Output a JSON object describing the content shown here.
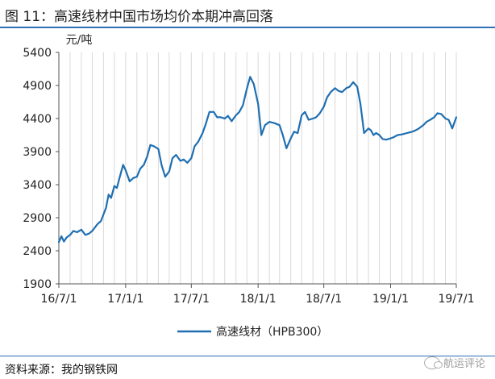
{
  "figure": {
    "title": "图 11：高速线材中国市场均价本期冲高回落",
    "source": "资料来源：我的钢铁网",
    "watermark": "航运评论",
    "watermark_icon": "wechat-icon"
  },
  "chart_data": {
    "type": "line",
    "title": "",
    "ylabel": "元/吨",
    "xlabel": "",
    "ylim": [
      1900,
      5400
    ],
    "yticks": [
      1900,
      2400,
      2900,
      3400,
      3900,
      4400,
      4900,
      5400
    ],
    "xlim": [
      "2016-07-01",
      "2019-07-01"
    ],
    "xtick_labels": [
      "16/7/1",
      "17/1/1",
      "17/7/1",
      "18/1/1",
      "18/7/1",
      "19/1/1",
      "19/7/1"
    ],
    "xtick_dates": [
      "2016-07-01",
      "2017-01-01",
      "2017-07-01",
      "2018-01-01",
      "2018-07-01",
      "2019-01-01",
      "2019-07-01"
    ],
    "grid": "vertical",
    "legend": "bottom-center",
    "series": [
      {
        "name": "高速线材（HPB300）",
        "color": "#1f6fb2",
        "x": [
          "2016-07-01",
          "2016-07-08",
          "2016-07-15",
          "2016-07-22",
          "2016-08-01",
          "2016-08-10",
          "2016-08-20",
          "2016-09-01",
          "2016-09-12",
          "2016-09-22",
          "2016-10-01",
          "2016-10-15",
          "2016-10-25",
          "2016-11-01",
          "2016-11-08",
          "2016-11-15",
          "2016-11-22",
          "2016-12-01",
          "2016-12-08",
          "2016-12-15",
          "2016-12-25",
          "2017-01-01",
          "2017-01-12",
          "2017-01-22",
          "2017-02-01",
          "2017-02-10",
          "2017-02-20",
          "2017-03-01",
          "2017-03-10",
          "2017-03-20",
          "2017-04-01",
          "2017-04-10",
          "2017-04-20",
          "2017-05-01",
          "2017-05-10",
          "2017-05-20",
          "2017-06-01",
          "2017-06-10",
          "2017-06-20",
          "2017-07-01",
          "2017-07-10",
          "2017-07-20",
          "2017-08-01",
          "2017-08-10",
          "2017-08-20",
          "2017-09-01",
          "2017-09-10",
          "2017-09-20",
          "2017-10-01",
          "2017-10-10",
          "2017-10-20",
          "2017-11-01",
          "2017-11-10",
          "2017-11-20",
          "2017-12-01",
          "2017-12-10",
          "2017-12-20",
          "2018-01-01",
          "2018-01-10",
          "2018-01-20",
          "2018-02-01",
          "2018-02-15",
          "2018-03-01",
          "2018-03-10",
          "2018-03-20",
          "2018-04-01",
          "2018-04-10",
          "2018-04-20",
          "2018-05-01",
          "2018-05-10",
          "2018-05-20",
          "2018-06-01",
          "2018-06-10",
          "2018-06-20",
          "2018-07-01",
          "2018-07-10",
          "2018-07-20",
          "2018-08-01",
          "2018-08-10",
          "2018-08-20",
          "2018-09-01",
          "2018-09-10",
          "2018-09-20",
          "2018-10-01",
          "2018-10-10",
          "2018-10-20",
          "2018-11-01",
          "2018-11-08",
          "2018-11-15",
          "2018-11-22",
          "2018-12-01",
          "2018-12-10",
          "2018-12-20",
          "2019-01-01",
          "2019-01-10",
          "2019-01-20",
          "2019-02-01",
          "2019-02-15",
          "2019-03-01",
          "2019-03-10",
          "2019-03-20",
          "2019-04-01",
          "2019-04-10",
          "2019-04-20",
          "2019-05-01",
          "2019-05-10",
          "2019-05-20",
          "2019-06-01",
          "2019-06-10",
          "2019-06-20",
          "2019-07-01"
        ],
        "values": [
          2530,
          2620,
          2540,
          2600,
          2640,
          2700,
          2680,
          2720,
          2640,
          2660,
          2700,
          2800,
          2850,
          2950,
          3050,
          3250,
          3200,
          3380,
          3350,
          3500,
          3700,
          3620,
          3450,
          3500,
          3520,
          3640,
          3700,
          3820,
          4000,
          3980,
          3940,
          3700,
          3520,
          3600,
          3800,
          3850,
          3760,
          3780,
          3730,
          3800,
          3980,
          4050,
          4180,
          4320,
          4500,
          4500,
          4420,
          4420,
          4400,
          4440,
          4360,
          4450,
          4500,
          4600,
          4850,
          5030,
          4920,
          4620,
          4150,
          4300,
          4350,
          4330,
          4300,
          4150,
          3950,
          4100,
          4200,
          4180,
          4450,
          4500,
          4380,
          4400,
          4420,
          4480,
          4580,
          4720,
          4800,
          4860,
          4820,
          4800,
          4860,
          4880,
          4950,
          4880,
          4620,
          4180,
          4250,
          4220,
          4150,
          4180,
          4150,
          4090,
          4080,
          4100,
          4120,
          4150,
          4160,
          4180,
          4200,
          4220,
          4250,
          4300,
          4350,
          4380,
          4420,
          4480,
          4470,
          4400,
          4380,
          4250,
          4420
        ]
      }
    ]
  }
}
